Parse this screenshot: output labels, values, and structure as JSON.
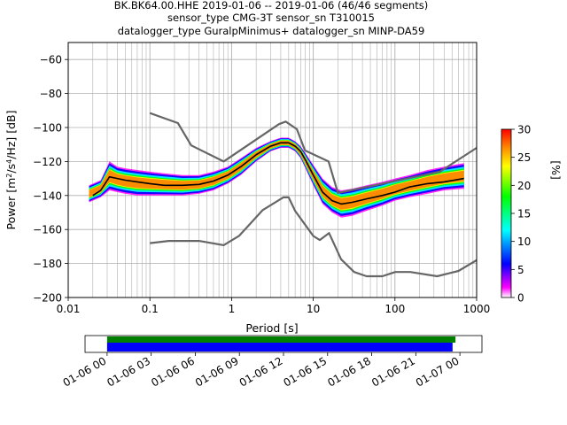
{
  "title_lines": [
    "BK.BK64.00.HHE   2019-01-06 -- 2019-01-06  (46/46 segments)",
    "sensor_type CMG-3T sensor_sn T310015",
    "datalogger_type GuralpMinimus+ datalogger_sn MINP-DA59"
  ],
  "colors": {
    "noise_model": "#666666",
    "mean_curve": "#000000",
    "coverage_data": "#008000",
    "coverage_used": "#0000ff",
    "grid": "#b0b0b0"
  },
  "chart_data": {
    "type": "heatmap",
    "xlabel": "Period [s]",
    "ylabel": "Power [m²/s⁴/Hz] [dB]",
    "xscale": "log",
    "xlim": [
      0.01,
      1000
    ],
    "ylim": [
      -200,
      -50
    ],
    "grid": true,
    "x_tick_labels": [
      "0.01",
      "0.1",
      "1",
      "10",
      "100",
      "1000"
    ],
    "x_ticks": [
      0.01,
      0.1,
      1,
      10,
      100,
      1000
    ],
    "y_ticks": [
      -200,
      -180,
      -160,
      -140,
      -120,
      -100,
      -80,
      -60
    ],
    "colorbar": {
      "label": "[%]",
      "range": [
        0,
        30
      ],
      "ticks": [
        0,
        5,
        10,
        15,
        20,
        25,
        30
      ],
      "colormap": [
        "#ffffff",
        "#ff00ff",
        "#0000ff",
        "#00ffff",
        "#00ff00",
        "#ffff00",
        "#ff8000",
        "#ff0000"
      ]
    },
    "series": [
      {
        "role": "new-high-noise-model",
        "x": [
          0.1,
          0.22,
          0.32,
          0.8,
          3.8,
          4.6,
          6.3,
          7.9,
          15.4,
          20,
          354.8,
          1000
        ],
        "y": [
          -91.5,
          -97.4,
          -110.5,
          -120,
          -98,
          -96.5,
          -101,
          -113.5,
          -120,
          -138.5,
          -126,
          -112
        ]
      },
      {
        "role": "new-low-noise-model",
        "x": [
          0.1,
          0.17,
          0.4,
          0.8,
          1.24,
          2.4,
          4.3,
          5,
          6,
          10,
          12,
          15.6,
          21.9,
          31.6,
          45,
          70,
          101,
          154,
          328,
          600,
          1000
        ],
        "y": [
          -168,
          -166.7,
          -166.7,
          -169.2,
          -163.7,
          -148.6,
          -141.1,
          -141.1,
          -149,
          -163.8,
          -166.2,
          -162.1,
          -177.5,
          -185,
          -187.5,
          -187.5,
          -185,
          -185,
          -187.5,
          -184.4,
          -178
        ]
      },
      {
        "role": "mean-psd",
        "x": [
          0.02,
          0.025,
          0.032,
          0.04,
          0.05,
          0.07,
          0.1,
          0.15,
          0.25,
          0.4,
          0.6,
          0.9,
          1.3,
          2,
          3,
          4,
          5,
          6,
          7,
          8,
          10,
          13,
          17,
          22,
          30,
          45,
          70,
          100,
          150,
          250,
          400,
          700
        ],
        "y": [
          -140,
          -137,
          -129,
          -130,
          -131,
          -132,
          -133,
          -134,
          -134,
          -133.5,
          -131.5,
          -128,
          -123,
          -116,
          -111,
          -109,
          -109,
          -111,
          -114,
          -119,
          -128,
          -138,
          -143,
          -145,
          -144,
          -142,
          -140,
          -138,
          -135,
          -133,
          -132,
          -130
        ]
      }
    ],
    "heatmap_band": {
      "x": [
        0.018,
        0.025,
        0.032,
        0.04,
        0.05,
        0.07,
        0.1,
        0.15,
        0.25,
        0.4,
        0.6,
        0.9,
        1.3,
        2,
        3,
        4,
        5,
        6,
        7,
        8,
        10,
        13,
        17,
        22,
        30,
        45,
        70,
        100,
        150,
        250,
        400,
        700
      ],
      "lower": [
        -144,
        -141,
        -137,
        -138,
        -139,
        -140,
        -140,
        -140,
        -140,
        -139,
        -137,
        -133,
        -128,
        -120,
        -114,
        -112,
        -112,
        -114,
        -118,
        -124,
        -134,
        -145,
        -150,
        -153,
        -152,
        -149,
        -146,
        -143,
        -141,
        -139,
        -137,
        -136
      ],
      "upper": [
        -134,
        -131,
        -120,
        -123,
        -124,
        -125,
        -126,
        -127,
        -128,
        -128,
        -126,
        -123,
        -118,
        -112,
        -108,
        -106,
        -106,
        -108,
        -111,
        -115,
        -122,
        -130,
        -135,
        -137,
        -136,
        -134,
        -132,
        -130,
        -128,
        -125,
        -123,
        -121
      ]
    },
    "coverage": {
      "x_tick_labels": [
        "01-06 00",
        "01-06 03",
        "01-06 06",
        "01-06 09",
        "01-06 12",
        "01-06 15",
        "01-06 18",
        "01-06 21",
        "01-07 00"
      ],
      "x_range_hours": [
        -1.5,
        25.5
      ],
      "data_span_hours": [
        0,
        23.7
      ],
      "used_span_hours": [
        0,
        23.5
      ]
    }
  }
}
